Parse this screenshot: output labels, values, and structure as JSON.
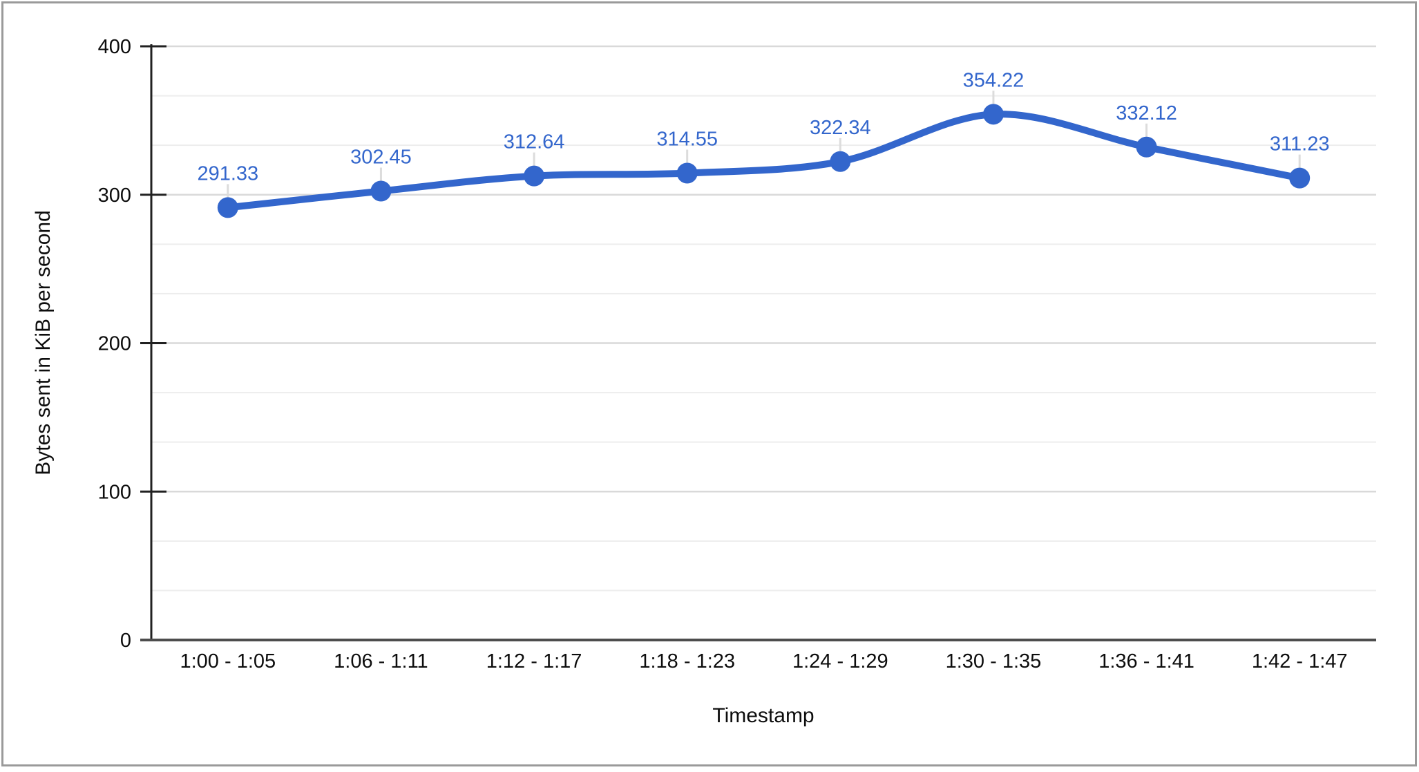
{
  "chart_data": {
    "type": "line",
    "categories": [
      "1:00 - 1:05",
      "1:06 - 1:11",
      "1:12 - 1:17",
      "1:18 - 1:23",
      "1:24 - 1:29",
      "1:30 - 1:35",
      "1:36 - 1:41",
      "1:42 - 1:47"
    ],
    "series": [
      {
        "values": [
          291.33,
          302.45,
          312.64,
          314.55,
          322.34,
          354.22,
          332.12,
          311.23
        ],
        "labels": [
          "291.33",
          "302.45",
          "312.64",
          "314.55",
          "322.34",
          "354.22",
          "332.12",
          "311.23"
        ],
        "color": "#3366cc"
      }
    ],
    "xlabel": "Timestamp",
    "ylabel": "Bytes sent in KiB per second",
    "ylim": [
      0,
      400
    ],
    "yticks": [
      0,
      100,
      200,
      300,
      400
    ],
    "minor_gridlines_between_major": 2,
    "grid": true,
    "legend": "none",
    "smooth_curve": true,
    "point_labels_visible": true
  },
  "colors": {
    "series_blue": "#3366cc",
    "axis_text": "#0d0d0d",
    "grid_major": "#d9d9d9",
    "grid_minor": "#ededed",
    "axis_line": "#212121",
    "baseline": "#4d4d4d",
    "annotation_stem": "#dcdcdc",
    "frame_border": "#9a9a9a",
    "background": "#ffffff"
  }
}
